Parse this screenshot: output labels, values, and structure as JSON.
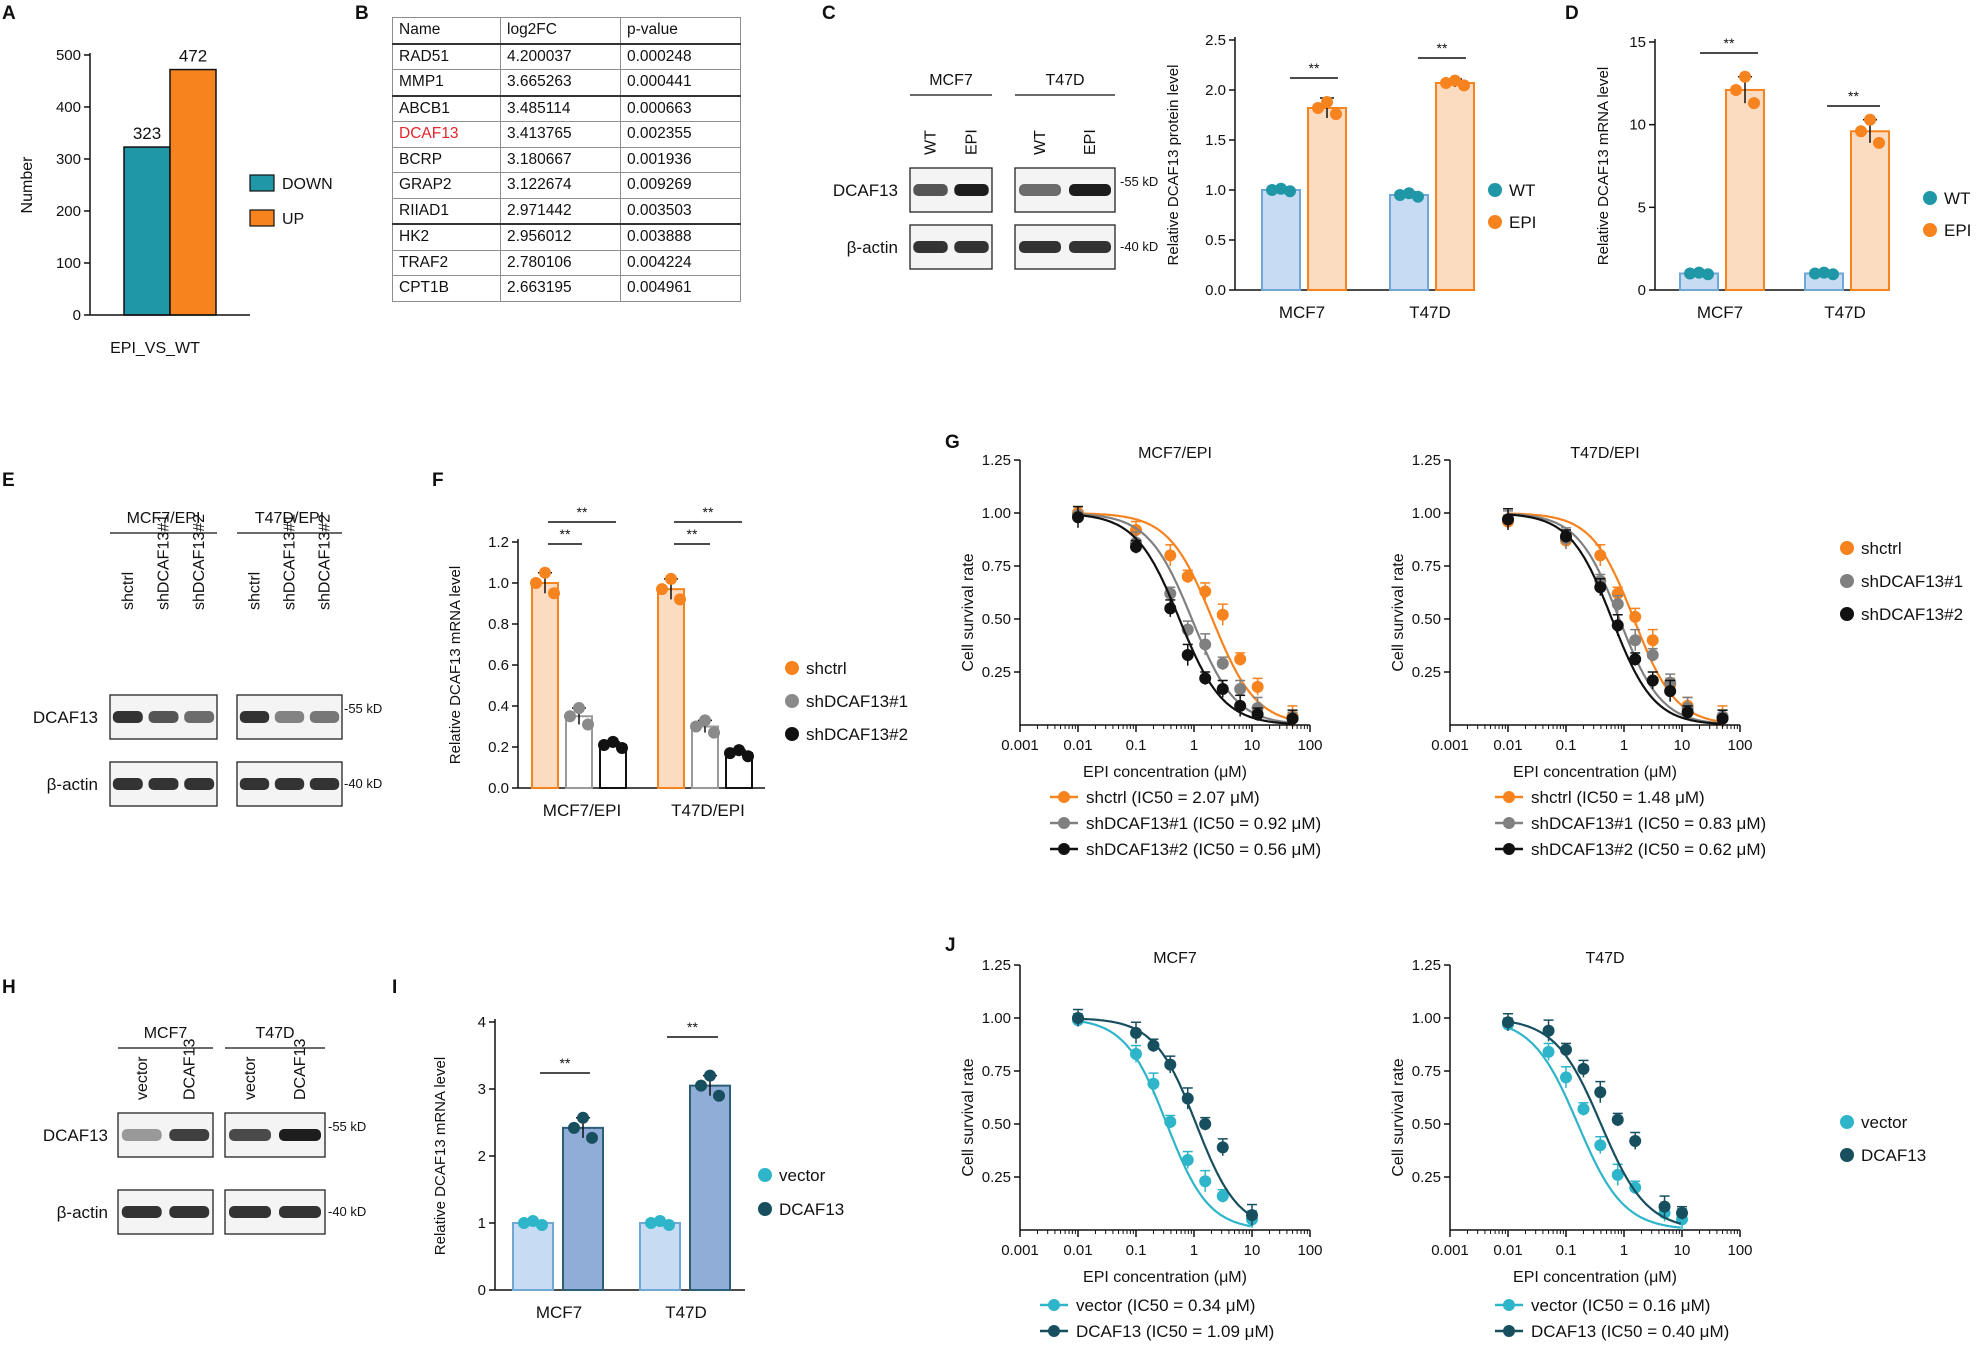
{
  "panel_labels": {
    "A": "A",
    "B": "B",
    "C": "C",
    "D": "D",
    "E": "E",
    "F": "F",
    "G": "G",
    "H": "H",
    "I": "I",
    "J": "J"
  },
  "colors": {
    "teal": "#1f97a6",
    "orange": "#f7831f",
    "orange_light": "#fbdcc0",
    "blue_light": "#c7dcf2",
    "blue_mid": "#8fadd6",
    "cyan": "#2fb5c9",
    "navy": "#174f5f",
    "gray": "#808080",
    "black": "#111111"
  },
  "chart_data": [
    {
      "id": "A",
      "type": "bar",
      "title": "",
      "xlabel": "EPI_VS_WT",
      "ylabel": "Number",
      "ylim": [
        0,
        500
      ],
      "yticks": [
        0,
        100,
        200,
        300,
        400,
        500
      ],
      "series": [
        {
          "name": "DOWN",
          "values": [
            323
          ]
        },
        {
          "name": "UP",
          "values": [
            472
          ]
        }
      ],
      "value_labels": [
        "323",
        "472"
      ]
    },
    {
      "id": "C",
      "type": "bar",
      "ylabel": "Relative DCAF13 protein level",
      "ylim": [
        0,
        2.5
      ],
      "yticks": [
        0,
        0.5,
        1.0,
        1.5,
        2.0,
        2.5
      ],
      "ytick_labels": [
        "0.0",
        "0.5",
        "1.0",
        "1.5",
        "2.0",
        "2.5"
      ],
      "categories": [
        "MCF7",
        "T47D"
      ],
      "series": [
        {
          "name": "WT",
          "values": [
            1.0,
            0.95
          ],
          "errors": [
            0.02,
            0.03
          ]
        },
        {
          "name": "EPI",
          "values": [
            1.82,
            2.07
          ],
          "errors": [
            0.1,
            0.04
          ]
        }
      ],
      "significance": [
        "**",
        "**"
      ]
    },
    {
      "id": "D",
      "type": "bar",
      "ylabel": "Relative DCAF13 mRNA level",
      "ylim": [
        0,
        15
      ],
      "yticks": [
        0,
        5,
        10,
        15
      ],
      "ytick_labels": [
        "0",
        "5",
        "10",
        "15"
      ],
      "categories": [
        "MCF7",
        "T47D"
      ],
      "series": [
        {
          "name": "WT",
          "values": [
            1.0,
            1.0
          ],
          "errors": [
            0.05,
            0.05
          ]
        },
        {
          "name": "EPI",
          "values": [
            12.1,
            9.6
          ],
          "errors": [
            0.8,
            0.7
          ]
        }
      ],
      "significance": [
        "**",
        "**"
      ]
    },
    {
      "id": "F",
      "type": "bar",
      "ylabel": "Relative DCAF13 mRNA level",
      "ylim": [
        0,
        1.2
      ],
      "yticks": [
        0,
        0.2,
        0.4,
        0.6,
        0.8,
        1.0,
        1.2
      ],
      "ytick_labels": [
        "0.0",
        "0.2",
        "0.4",
        "0.6",
        "0.8",
        "1.0",
        "1.2"
      ],
      "categories": [
        "MCF7/EPI",
        "T47D/EPI"
      ],
      "series": [
        {
          "name": "shctrl",
          "values": [
            1.0,
            0.97
          ],
          "errors": [
            0.05,
            0.05
          ]
        },
        {
          "name": "shDCAF13#1",
          "values": [
            0.35,
            0.3
          ],
          "errors": [
            0.04,
            0.03
          ]
        },
        {
          "name": "shDCAF13#2",
          "values": [
            0.21,
            0.17
          ],
          "errors": [
            0.015,
            0.015
          ]
        }
      ],
      "significance": [
        "**",
        "**",
        "**",
        "**"
      ]
    },
    {
      "id": "G1",
      "type": "line",
      "title": "MCF7/EPI",
      "xlabel": "EPI concentration (μM)",
      "ylabel": "Cell survival rate",
      "xscale": "log",
      "xlim": [
        0.001,
        100
      ],
      "ylim": [
        0,
        1.25
      ],
      "xticks": [
        0.001,
        0.01,
        0.1,
        1,
        10,
        100
      ],
      "xtick_labels": [
        "0.001",
        "0.01",
        "0.1",
        "1",
        "10",
        "100"
      ],
      "yticks": [
        0.25,
        0.5,
        0.75,
        1.0,
        1.25
      ],
      "ytick_labels": [
        "0.25",
        "0.50",
        "0.75",
        "1.00",
        "1.25"
      ],
      "x": [
        0.01,
        0.1,
        0.39,
        0.78,
        1.56,
        3.13,
        6.25,
        12.5,
        50
      ],
      "series": [
        {
          "name": "shctrl",
          "legend": "shctrl (IC50 = 2.07 μM)",
          "ic50": 2.07,
          "values": [
            1.0,
            0.92,
            0.8,
            0.7,
            0.63,
            0.52,
            0.31,
            0.18,
            0.04
          ]
        },
        {
          "name": "shDCAF13#1",
          "legend": "shDCAF13#1 (IC50 = 0.92 μM)",
          "ic50": 0.92,
          "values": [
            0.99,
            0.86,
            0.62,
            0.45,
            0.38,
            0.29,
            0.17,
            0.08,
            0.03
          ]
        },
        {
          "name": "shDCAF13#2",
          "legend": "shDCAF13#2 (IC50 = 0.56 μM)",
          "ic50": 0.56,
          "values": [
            0.98,
            0.84,
            0.55,
            0.33,
            0.22,
            0.17,
            0.09,
            0.05,
            0.03
          ]
        }
      ]
    },
    {
      "id": "G2",
      "type": "line",
      "title": "T47D/EPI",
      "xlabel": "EPI concentration (μM)",
      "ylabel": "Cell survival rate",
      "xscale": "log",
      "xlim": [
        0.001,
        100
      ],
      "ylim": [
        0,
        1.25
      ],
      "xticks": [
        0.001,
        0.01,
        0.1,
        1,
        10,
        100
      ],
      "xtick_labels": [
        "0.001",
        "0.01",
        "0.1",
        "1",
        "10",
        "100"
      ],
      "yticks": [
        0.25,
        0.5,
        0.75,
        1.0,
        1.25
      ],
      "ytick_labels": [
        "0.25",
        "0.50",
        "0.75",
        "1.00",
        "1.25"
      ],
      "x": [
        0.01,
        0.1,
        0.39,
        0.78,
        1.56,
        3.13,
        6.25,
        12.5,
        50
      ],
      "series": [
        {
          "name": "shctrl",
          "legend": "shctrl (IC50 = 1.48 μM)",
          "ic50": 1.48,
          "values": [
            0.96,
            0.87,
            0.8,
            0.62,
            0.51,
            0.4,
            0.19,
            0.09,
            0.04
          ]
        },
        {
          "name": "shDCAF13#1",
          "legend": "shDCAF13#1 (IC50 = 0.83 μM)",
          "ic50": 0.83,
          "values": [
            0.97,
            0.88,
            0.68,
            0.57,
            0.4,
            0.33,
            0.2,
            0.08,
            0.04
          ]
        },
        {
          "name": "shDCAF13#2",
          "legend": "shDCAF13#2 (IC50 = 0.62 μM)",
          "ic50": 0.62,
          "values": [
            0.97,
            0.89,
            0.65,
            0.47,
            0.31,
            0.21,
            0.16,
            0.06,
            0.03
          ]
        }
      ]
    },
    {
      "id": "I",
      "type": "bar",
      "ylabel": "Relative DCAF13 mRNA level",
      "ylim": [
        0,
        4
      ],
      "yticks": [
        0,
        1,
        2,
        3,
        4
      ],
      "ytick_labels": [
        "0",
        "1",
        "2",
        "3",
        "4"
      ],
      "categories": [
        "MCF7",
        "T47D"
      ],
      "series": [
        {
          "name": "vector",
          "values": [
            1.0,
            1.0
          ],
          "errors": [
            0.03,
            0.03
          ]
        },
        {
          "name": "DCAF13",
          "values": [
            2.42,
            3.05
          ],
          "errors": [
            0.15,
            0.15
          ]
        }
      ],
      "significance": [
        "**",
        "**"
      ]
    },
    {
      "id": "J1",
      "type": "line",
      "title": "MCF7",
      "xlabel": "EPI concentration (μM)",
      "ylabel": "Cell survival rate",
      "xscale": "log",
      "xlim": [
        0.001,
        100
      ],
      "ylim": [
        0,
        1.25
      ],
      "xticks": [
        0.001,
        0.01,
        0.1,
        1,
        10,
        100
      ],
      "xtick_labels": [
        "0.001",
        "0.01",
        "0.1",
        "1",
        "10",
        "100"
      ],
      "yticks": [
        0.25,
        0.5,
        0.75,
        1.0,
        1.25
      ],
      "ytick_labels": [
        "0.25",
        "0.50",
        "0.75",
        "1.00",
        "1.25"
      ],
      "x": [
        0.01,
        0.1,
        0.2,
        0.39,
        0.78,
        1.56,
        3.13,
        10
      ],
      "series": [
        {
          "name": "vector",
          "legend": "vector (IC50 = 0.34 μM)",
          "ic50": 0.34,
          "values": [
            0.99,
            0.83,
            0.69,
            0.51,
            0.33,
            0.23,
            0.16,
            0.05
          ]
        },
        {
          "name": "DCAF13",
          "legend": "DCAF13 (IC50 = 1.09 μM)",
          "ic50": 1.09,
          "values": [
            1.0,
            0.93,
            0.87,
            0.78,
            0.62,
            0.5,
            0.39,
            0.07
          ]
        }
      ]
    },
    {
      "id": "J2",
      "type": "line",
      "title": "T47D",
      "xlabel": "EPI concentration (μM)",
      "ylabel": "Cell survival rate",
      "xscale": "log",
      "xlim": [
        0.001,
        100
      ],
      "ylim": [
        0,
        1.25
      ],
      "xticks": [
        0.001,
        0.01,
        0.1,
        1,
        10,
        100
      ],
      "xtick_labels": [
        "0.001",
        "0.01",
        "0.1",
        "1",
        "10",
        "100"
      ],
      "yticks": [
        0.25,
        0.5,
        0.75,
        1.0,
        1.25
      ],
      "ytick_labels": [
        "0.25",
        "0.50",
        "0.75",
        "1.00",
        "1.25"
      ],
      "x": [
        0.01,
        0.05,
        0.1,
        0.2,
        0.39,
        0.78,
        1.56,
        5,
        10
      ],
      "series": [
        {
          "name": "vector",
          "legend": "vector (IC50 = 0.16 μM)",
          "ic50": 0.16,
          "values": [
            0.97,
            0.84,
            0.72,
            0.57,
            0.4,
            0.26,
            0.2,
            0.08,
            0.05
          ]
        },
        {
          "name": "DCAF13",
          "legend": "DCAF13 (IC50 = 0.40 μM)",
          "ic50": 0.4,
          "values": [
            0.98,
            0.94,
            0.85,
            0.76,
            0.65,
            0.52,
            0.42,
            0.11,
            0.08
          ]
        }
      ]
    }
  ],
  "table_B": {
    "headers": [
      "Name",
      "log2FC",
      "p-value"
    ],
    "rows": [
      [
        "RAD51",
        "4.200037",
        "0.000248"
      ],
      [
        "MMP1",
        "3.665263",
        "0.000441"
      ],
      [
        "ABCB1",
        "3.485114",
        "0.000663"
      ],
      [
        "DCAF13",
        "3.413765",
        "0.002355"
      ],
      [
        "BCRP",
        "3.180667",
        "0.001936"
      ],
      [
        "GRAP2",
        "3.122674",
        "0.009269"
      ],
      [
        "RIIAD1",
        "2.971442",
        "0.003503"
      ],
      [
        "HK2",
        "2.956012",
        "0.003888"
      ],
      [
        "TRAF2",
        "2.780106",
        "0.004224"
      ],
      [
        "CPT1B",
        "2.663195",
        "0.004961"
      ]
    ]
  },
  "blot_C": {
    "groups": [
      "MCF7",
      "T47D"
    ],
    "lanes": [
      "WT",
      "EPI",
      "WT",
      "EPI"
    ],
    "rows": [
      "DCAF13",
      "β-actin"
    ],
    "markers": [
      "55 kD",
      "40 kD"
    ]
  },
  "blot_E": {
    "groups": [
      "MCF7/EPI",
      "T47D/EPI"
    ],
    "lanes": [
      "shctrl",
      "shDCAF13#1",
      "shDCAF13#2",
      "shctrl",
      "shDCAF13#1",
      "shDCAF13#2"
    ],
    "rows": [
      "DCAF13",
      "β-actin"
    ],
    "markers": [
      "55 kD",
      "40 kD"
    ]
  },
  "blot_H": {
    "groups": [
      "MCF7",
      "T47D"
    ],
    "lanes": [
      "vector",
      "DCAF13",
      "vector",
      "DCAF13"
    ],
    "rows": [
      "DCAF13",
      "β-actin"
    ],
    "markers": [
      "55 kD",
      "40 kD"
    ]
  }
}
